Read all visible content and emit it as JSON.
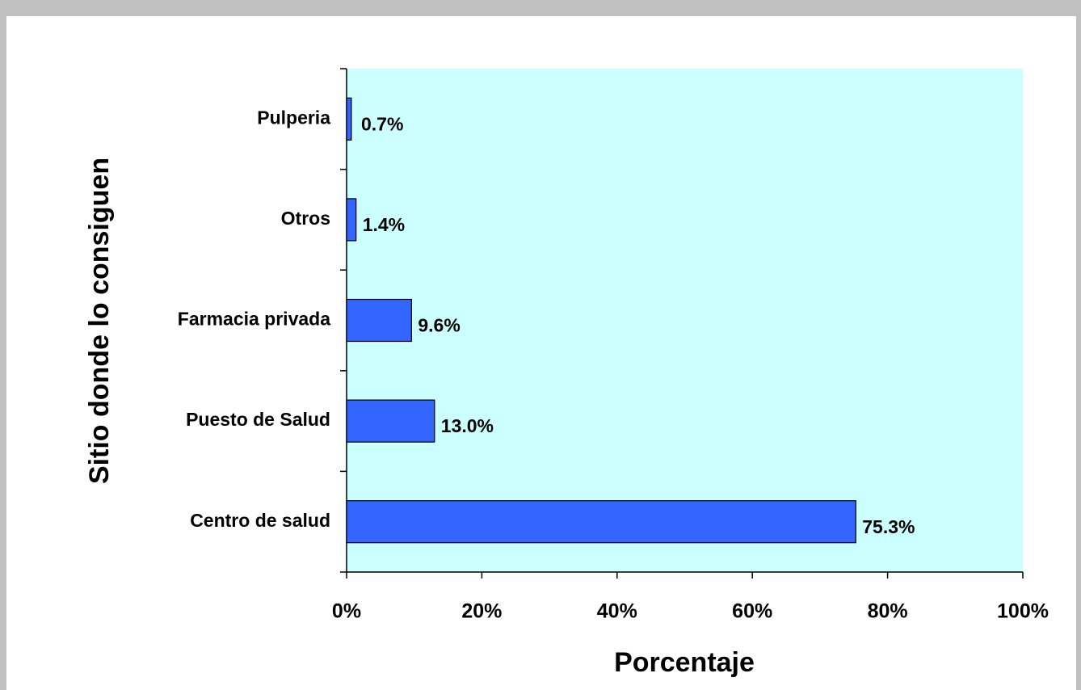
{
  "chart_data": {
    "type": "hbar",
    "categories": [
      "Pulperia",
      "Otros",
      "Farmacia privada",
      "Puesto de Salud",
      "Centro de salud"
    ],
    "values": [
      0.7,
      1.4,
      9.6,
      13.0,
      75.3
    ],
    "value_labels": [
      "0.7%",
      "1.4%",
      "9.6%",
      "13.0%",
      "75.3%"
    ],
    "color": "#3366ff",
    "x_label": "Porcentaje",
    "y_label": "Sitio donde lo consiguen",
    "xlim": [
      0,
      100
    ],
    "xticks": [
      {
        "value": 0,
        "label": "0%"
      },
      {
        "value": 20,
        "label": "20%"
      },
      {
        "value": 40,
        "label": "40%"
      },
      {
        "value": 60,
        "label": "60%"
      },
      {
        "value": 80,
        "label": "80%"
      },
      {
        "value": 100,
        "label": "100%"
      }
    ],
    "plot_background": "#ccffff"
  }
}
